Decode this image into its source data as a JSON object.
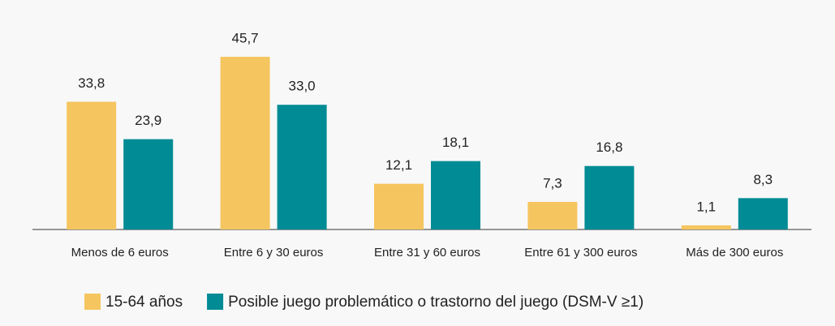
{
  "chart_data": {
    "type": "bar",
    "categories": [
      "Menos de 6 euros",
      "Entre 6 y 30 euros",
      "Entre 31 y 60 euros",
      "Entre 61 y 300 euros",
      "Más de 300 euros"
    ],
    "series": [
      {
        "name": "15-64 años",
        "color": "#f5c55f",
        "values": [
          33.8,
          45.7,
          12.1,
          7.3,
          1.1
        ],
        "value_labels": [
          "33,8",
          "45,7",
          "12,1",
          "7,3",
          "1,1"
        ]
      },
      {
        "name": "Posible juego problemático o trastorno del juego (DSM-V ≥1)",
        "color": "#008b95",
        "values": [
          23.9,
          33.0,
          18.1,
          16.8,
          8.3
        ],
        "value_labels": [
          "23,9",
          "33,0",
          "18,1",
          "16,8",
          "8,3"
        ]
      }
    ],
    "legend": "bottom"
  }
}
